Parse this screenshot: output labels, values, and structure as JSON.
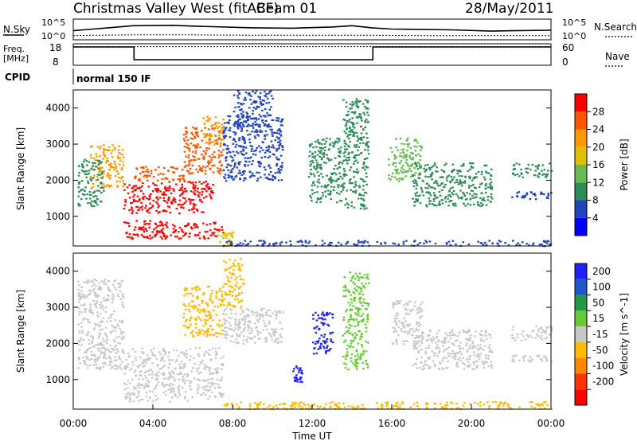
{
  "header": {
    "site": "Christmas Valley West (fitACF)",
    "beam": "Beam 01",
    "date": "28/May/2011"
  },
  "strip_labels": {
    "nsky": "N.Sky",
    "nsearch": "N.Search",
    "freq_line1": "Freq.",
    "freq_line2": "[MHz]",
    "nave": "Nave",
    "cpid": "CPID",
    "cpid_value": "normal 150 IF",
    "nsky_ticks": [
      "10^5",
      "10^0"
    ],
    "nsearch_ticks": [
      "10^5",
      "10^0"
    ],
    "freq_ticks": [
      "18",
      "8"
    ],
    "nave_ticks": [
      "60",
      "0"
    ]
  },
  "colors": {
    "nodata": "#c8c8c8",
    "power_scale": [
      "#0000ff",
      "#2244bb",
      "#2e8b57",
      "#66bb55",
      "#e0c000",
      "#ff9900",
      "#ff5500",
      "#ff0000"
    ],
    "velocity_scale": [
      "#2020ff",
      "#2255cc",
      "#229944",
      "#66cc33",
      "#c8c8c8",
      "#ffbb00",
      "#ff8800",
      "#ff3300",
      "#ff0000"
    ]
  },
  "chart_data": [
    {
      "type": "line",
      "name": "noise-strip",
      "x_unit": "hours UT",
      "xlim": [
        0,
        24
      ],
      "series": [
        {
          "name": "N.Sky",
          "x": [
            0,
            0.5,
            1,
            3,
            5,
            6,
            9,
            11,
            13,
            14,
            15,
            16,
            19,
            21,
            22,
            24
          ],
          "values": [
            2.2,
            2.4,
            2.6,
            3.4,
            3.5,
            3.3,
            2.9,
            2.8,
            3.1,
            3.4,
            2.9,
            2.6,
            2.4,
            2.1,
            2.2,
            2.3
          ]
        },
        {
          "name": "N.Search",
          "x": [
            0,
            1,
            3,
            6,
            9,
            12,
            15,
            18,
            21,
            24
          ],
          "values": [
            1.0,
            1.1,
            1.2,
            1.2,
            1.1,
            1.1,
            1.1,
            1.0,
            1.0,
            1.0
          ]
        }
      ]
    },
    {
      "type": "line",
      "name": "freq-strip",
      "x_unit": "hours UT",
      "xlim": [
        0,
        24
      ],
      "series": [
        {
          "name": "Freq.",
          "unit": "MHz",
          "x": [
            0,
            3.05,
            3.05,
            15.05,
            15.05,
            24
          ],
          "values": [
            16.5,
            16.5,
            10.6,
            10.6,
            16.5,
            16.5
          ]
        },
        {
          "name": "Nave",
          "x": [
            0,
            24
          ],
          "values": [
            52,
            52
          ]
        }
      ]
    },
    {
      "type": "heatmap",
      "name": "power",
      "title": "",
      "xlabel": "",
      "ylabel": "Slant Range [km]",
      "xlim": [
        0,
        24
      ],
      "ylim": [
        180,
        4500
      ],
      "yticks": [
        1000,
        2000,
        3000,
        4000
      ],
      "colorbar": {
        "label": "Power [dB]",
        "ticks": [
          "4",
          "8",
          "12",
          "16",
          "20",
          "24",
          "28"
        ],
        "range": [
          0,
          30
        ]
      },
      "regions": [
        {
          "t": [
            2.5,
            7.5
          ],
          "r": [
            400,
            900
          ],
          "value": 29
        },
        {
          "t": [
            2.5,
            6.5
          ],
          "r": [
            1100,
            1500
          ],
          "value": 28
        },
        {
          "t": [
            2.5,
            7.0
          ],
          "r": [
            1500,
            2000
          ],
          "value": 27
        },
        {
          "t": [
            3.0,
            5.5
          ],
          "r": [
            2000,
            2400
          ],
          "value": 25
        },
        {
          "t": [
            5.5,
            7.5
          ],
          "r": [
            2200,
            3500
          ],
          "value": 26
        },
        {
          "t": [
            0.8,
            2.5
          ],
          "r": [
            1800,
            3000
          ],
          "value": 20
        },
        {
          "t": [
            0.2,
            1.5
          ],
          "r": [
            1300,
            2600
          ],
          "value": 8
        },
        {
          "t": [
            6.5,
            7.5
          ],
          "r": [
            3000,
            3800
          ],
          "value": 22
        },
        {
          "t": [
            7.2,
            8.0
          ],
          "r": [
            200,
            600
          ],
          "value": 16
        },
        {
          "t": [
            7.5,
            10.5
          ],
          "r": [
            2000,
            3800
          ],
          "value": 7
        },
        {
          "t": [
            8.0,
            10.0
          ],
          "r": [
            3500,
            4500
          ],
          "value": 6
        },
        {
          "t": [
            11.8,
            13.5
          ],
          "r": [
            1400,
            3200
          ],
          "value": 8
        },
        {
          "t": [
            13.5,
            14.8
          ],
          "r": [
            1200,
            4300
          ],
          "value": 9
        },
        {
          "t": [
            15.8,
            17.5
          ],
          "r": [
            2000,
            3200
          ],
          "value": 12
        },
        {
          "t": [
            17.0,
            21.0
          ],
          "r": [
            1300,
            2500
          ],
          "value": 10
        },
        {
          "t": [
            22.0,
            24.0
          ],
          "r": [
            1500,
            1700
          ],
          "value": 7
        },
        {
          "t": [
            22.0,
            24.0
          ],
          "r": [
            2100,
            2500
          ],
          "value": 8
        },
        {
          "t": [
            7.5,
            24.0
          ],
          "r": [
            200,
            350
          ],
          "value": 6
        }
      ]
    },
    {
      "type": "heatmap",
      "name": "velocity",
      "title": "",
      "xlabel": "Time UT",
      "ylabel": "Slant Range [km]",
      "xlim": [
        0,
        24
      ],
      "ylim": [
        180,
        4500
      ],
      "yticks": [
        1000,
        2000,
        3000,
        4000
      ],
      "xticks": [
        "00:00",
        "04:00",
        "08:00",
        "12:00",
        "16:00",
        "20:00",
        "00:00"
      ],
      "colorbar": {
        "label": "Velocity [m s^-1]",
        "ticks": [
          "200",
          "100",
          "50",
          "15",
          "-15",
          "-50",
          "-100",
          "-200"
        ],
        "range": [
          -250,
          250
        ]
      },
      "regions": [
        {
          "t": [
            0.2,
            2.5
          ],
          "r": [
            1300,
            3800
          ],
          "value": 0
        },
        {
          "t": [
            2.5,
            7.5
          ],
          "r": [
            400,
            1900
          ],
          "value": 0
        },
        {
          "t": [
            5.5,
            7.5
          ],
          "r": [
            2200,
            3600
          ],
          "value": -60
        },
        {
          "t": [
            7.5,
            8.5
          ],
          "r": [
            3000,
            4400
          ],
          "value": -70
        },
        {
          "t": [
            7.5,
            24.0
          ],
          "r": [
            200,
            400
          ],
          "value": -40
        },
        {
          "t": [
            7.5,
            10.5
          ],
          "r": [
            2000,
            3000
          ],
          "value": 0
        },
        {
          "t": [
            11.0,
            11.5
          ],
          "r": [
            900,
            1400
          ],
          "value": 220
        },
        {
          "t": [
            12.0,
            13.0
          ],
          "r": [
            1700,
            2900
          ],
          "value": 200
        },
        {
          "t": [
            13.5,
            14.8
          ],
          "r": [
            1300,
            4000
          ],
          "value": 40
        },
        {
          "t": [
            16.0,
            17.5
          ],
          "r": [
            2000,
            3200
          ],
          "value": 0
        },
        {
          "t": [
            17.0,
            21.0
          ],
          "r": [
            1300,
            2400
          ],
          "value": 0
        },
        {
          "t": [
            22.0,
            24.0
          ],
          "r": [
            1500,
            1700
          ],
          "value": 0
        },
        {
          "t": [
            22.0,
            24.0
          ],
          "r": [
            2100,
            2500
          ],
          "value": 0
        }
      ]
    }
  ],
  "time_axis_label": "Time UT"
}
